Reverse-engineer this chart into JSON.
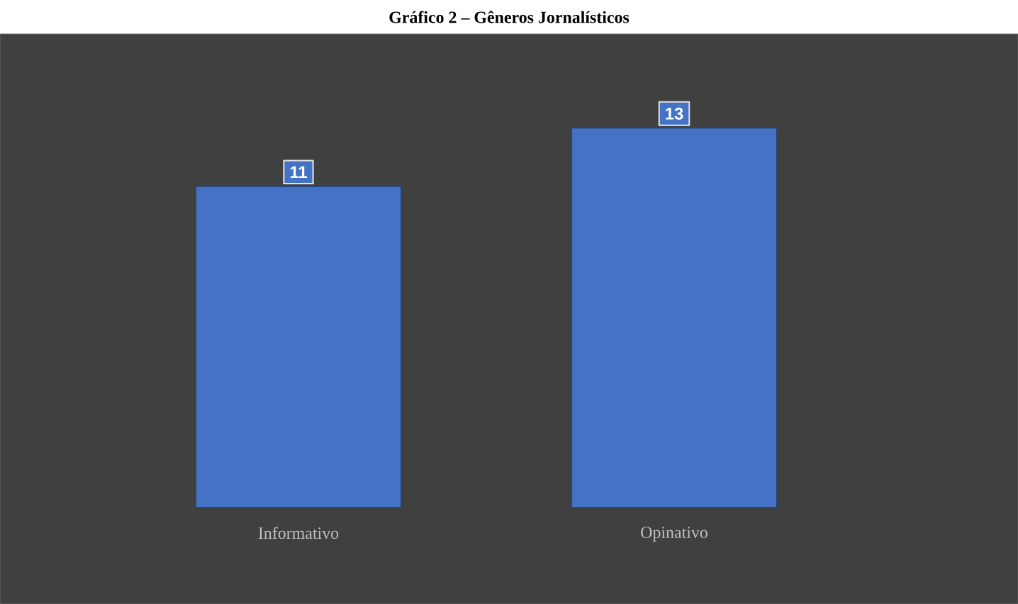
{
  "chart_data": {
    "type": "bar",
    "title": "Gráfico 2 – Gêneros Jornalísticos",
    "categories": [
      "Informativo",
      "Opinativo"
    ],
    "values": [
      11,
      13
    ],
    "color": "#4472c4",
    "data_labels": true
  }
}
